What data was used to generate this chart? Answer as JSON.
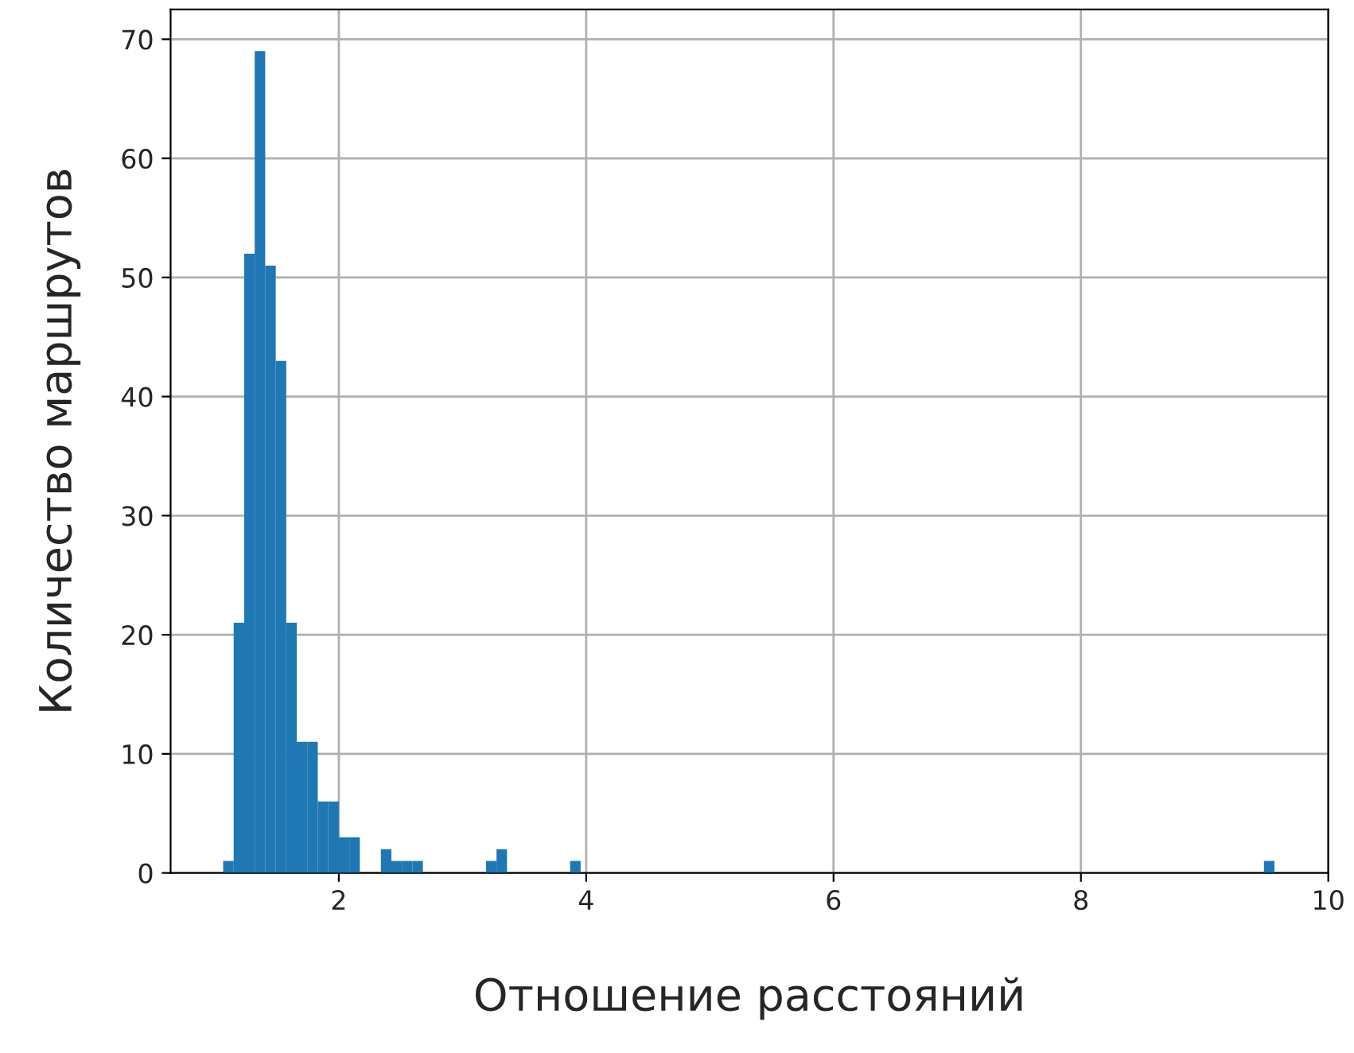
{
  "chart_data": {
    "type": "histogram",
    "xlabel": "Отношение расстояний",
    "ylabel": "Количество маршрутов",
    "color": "#1f77b4",
    "bins": [
      1.065,
      1.15,
      1.235,
      1.32,
      1.405,
      1.49,
      1.575,
      1.66,
      1.745,
      1.83,
      1.915,
      2.0,
      2.085,
      2.17,
      2.255,
      2.34,
      2.425,
      2.51,
      2.595,
      2.68,
      2.765,
      2.85,
      2.935,
      3.02,
      3.105,
      3.19,
      3.275,
      3.36,
      3.445,
      3.53,
      3.615,
      3.7,
      3.785,
      3.87,
      3.955,
      4.04,
      4.125,
      4.21,
      4.295,
      4.38,
      4.465,
      4.55,
      4.635,
      4.72,
      4.805,
      4.89,
      4.975,
      5.06,
      5.145,
      5.23,
      5.315,
      5.4,
      5.485,
      5.57,
      5.655,
      5.74,
      5.825,
      5.91,
      5.995,
      6.08,
      6.165,
      6.25,
      6.335,
      6.42,
      6.505,
      6.59,
      6.675,
      6.76,
      6.845,
      6.93,
      7.015,
      7.1,
      7.185,
      7.27,
      7.355,
      7.44,
      7.525,
      7.61,
      7.695,
      7.78,
      7.865,
      7.95,
      8.035,
      8.12,
      8.205,
      8.29,
      8.375,
      8.46,
      8.545,
      8.63,
      8.715,
      8.8,
      8.885,
      8.97,
      9.055,
      9.14,
      9.225,
      9.31,
      9.395,
      9.48,
      9.565
    ],
    "values": [
      1,
      21,
      52,
      69,
      51,
      43,
      21,
      11,
      11,
      6,
      6,
      3,
      3,
      0,
      0,
      2,
      1,
      1,
      1,
      0,
      0,
      0,
      0,
      0,
      0,
      1,
      2,
      0,
      0,
      0,
      0,
      0,
      0,
      1,
      0,
      0,
      0,
      0,
      0,
      0,
      0,
      0,
      0,
      0,
      0,
      0,
      0,
      0,
      0,
      0,
      0,
      0,
      0,
      0,
      0,
      0,
      0,
      0,
      0,
      0,
      0,
      0,
      0,
      0,
      0,
      0,
      0,
      0,
      0,
      0,
      0,
      0,
      0,
      0,
      0,
      0,
      0,
      0,
      0,
      0,
      0,
      0,
      0,
      0,
      0,
      0,
      0,
      0,
      0,
      0,
      0,
      0,
      0,
      0,
      0,
      0,
      0,
      0,
      0,
      1
    ],
    "xlim": [
      0.64,
      10
    ],
    "xticks": [
      2,
      4,
      6,
      8,
      10
    ],
    "ylim": [
      0,
      72.5
    ],
    "yticks": [
      0,
      10,
      20,
      30,
      40,
      50,
      60,
      70
    ],
    "grid": true
  }
}
